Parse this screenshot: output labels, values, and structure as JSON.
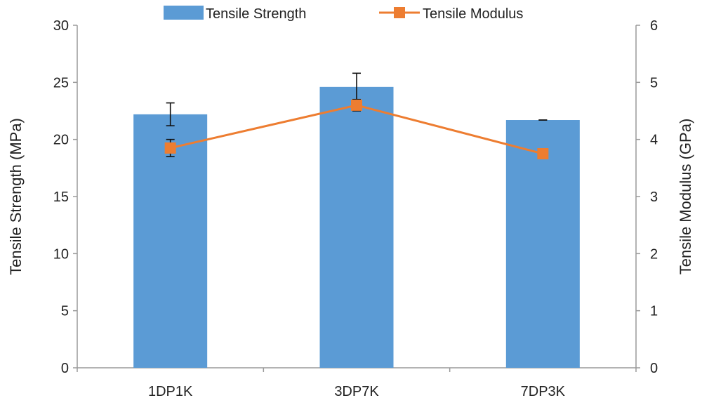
{
  "chart_data": {
    "type": "bar",
    "categories": [
      "1DP1K",
      "3DP7K",
      "7DP3K"
    ],
    "series": [
      {
        "name": "Tensile Strength",
        "kind": "bar",
        "axis": "left",
        "values": [
          22.2,
          24.6,
          21.7
        ],
        "error": [
          1.0,
          1.2,
          0.0
        ],
        "color": "#5b9bd5"
      },
      {
        "name": "Tensile Modulus",
        "kind": "line",
        "axis": "right",
        "values": [
          3.85,
          4.6,
          3.75
        ],
        "error": [
          0.15,
          0.1,
          0.0
        ],
        "color": "#ed7d31"
      }
    ],
    "ylabel": "Tensile Strength (MPa)",
    "y2label": "Tensile Modulus (GPa)",
    "ylim": [
      0,
      30
    ],
    "y2lim": [
      0,
      6
    ],
    "yticks": [
      "0",
      "5",
      "10",
      "15",
      "20",
      "25",
      "30"
    ],
    "y2ticks": [
      "0",
      "1",
      "2",
      "3",
      "4",
      "5",
      "6"
    ],
    "legend_position": "top",
    "grid": false
  }
}
